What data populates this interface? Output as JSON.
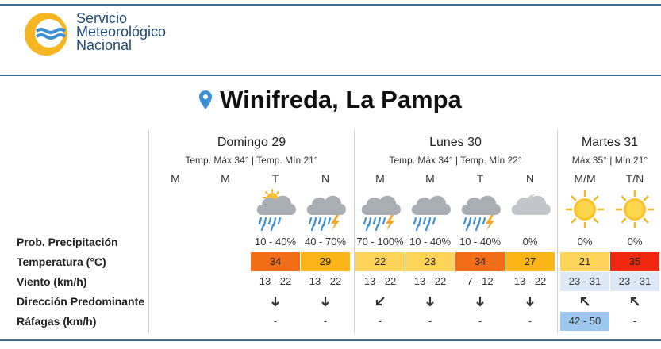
{
  "header": {
    "org_line1": "Servicio",
    "org_line2": "Meteorológico",
    "org_line3": "Nacional"
  },
  "location": "Winifreda, La Pampa",
  "days": [
    {
      "name": "Domingo 29",
      "temps": "Temp. Máx 34° | Temp. Mín 21°"
    },
    {
      "name": "Lunes 30",
      "temps": "Temp. Máx 34° | Temp. Mín 22°"
    },
    {
      "name": "Martes 31",
      "temps": "Máx 35° | Mín 21°"
    }
  ],
  "row_labels": {
    "precip": "Prob. Precipitación",
    "temp": "Temperatura (°C)",
    "wind": "Viento (km/h)",
    "direction": "Dirección Predominante",
    "gusts": "Ráfagas (km/h)"
  },
  "columns": [
    {
      "period": "M",
      "icon": "none",
      "precip": "",
      "temp": "",
      "wind": "",
      "dir": "",
      "gust": ""
    },
    {
      "period": "M",
      "icon": "none",
      "precip": "",
      "temp": "",
      "wind": "",
      "dir": "",
      "gust": ""
    },
    {
      "period": "T",
      "icon": "sun-cloud-rain-icon",
      "precip": "10 - 40%",
      "temp": "34",
      "temp_color": "#f16d18",
      "wind": "13 - 22",
      "dir": "south-arrow-icon",
      "gust": "-"
    },
    {
      "period": "N",
      "icon": "storm-icon",
      "precip": "40 - 70%",
      "temp": "29",
      "temp_color": "#fbb516",
      "wind": "13 - 22",
      "dir": "south-arrow-icon",
      "gust": "-"
    },
    {
      "period": "M",
      "icon": "storm-icon",
      "precip": "70 - 100%",
      "temp": "22",
      "temp_color": "#fdd35a",
      "wind": "13 - 22",
      "dir": "southwest-arrow-icon",
      "gust": "-"
    },
    {
      "period": "M",
      "icon": "cloud-rain-icon",
      "precip": "10 - 40%",
      "temp": "23",
      "temp_color": "#fdd35a",
      "wind": "13 - 22",
      "dir": "south-arrow-icon",
      "gust": "-"
    },
    {
      "period": "T",
      "icon": "storm-icon",
      "precip": "10 - 40%",
      "temp": "34",
      "temp_color": "#f16d18",
      "wind": "7 - 12",
      "dir": "south-arrow-icon",
      "gust": "-"
    },
    {
      "period": "N",
      "icon": "cloudy-night-icon",
      "precip": "0%",
      "temp": "27",
      "temp_color": "#fbb516",
      "wind": "13 - 22",
      "dir": "south-arrow-icon",
      "gust": "-"
    },
    {
      "period": "M/M",
      "icon": "sun-icon",
      "precip": "0%",
      "temp": "21",
      "temp_color": "#fdd35a",
      "wind": "23 - 31",
      "wind_bg": "#dce9f5",
      "dir": "northwest-arrow-icon",
      "gust": "42 - 50",
      "gust_bg": "#9cc8f0"
    },
    {
      "period": "T/N",
      "icon": "sun-icon",
      "precip": "0%",
      "temp": "35",
      "temp_color": "#f0280f",
      "wind": "23 - 31",
      "wind_bg": "#dce9f5",
      "dir": "northwest-arrow-icon",
      "gust": "-"
    }
  ]
}
